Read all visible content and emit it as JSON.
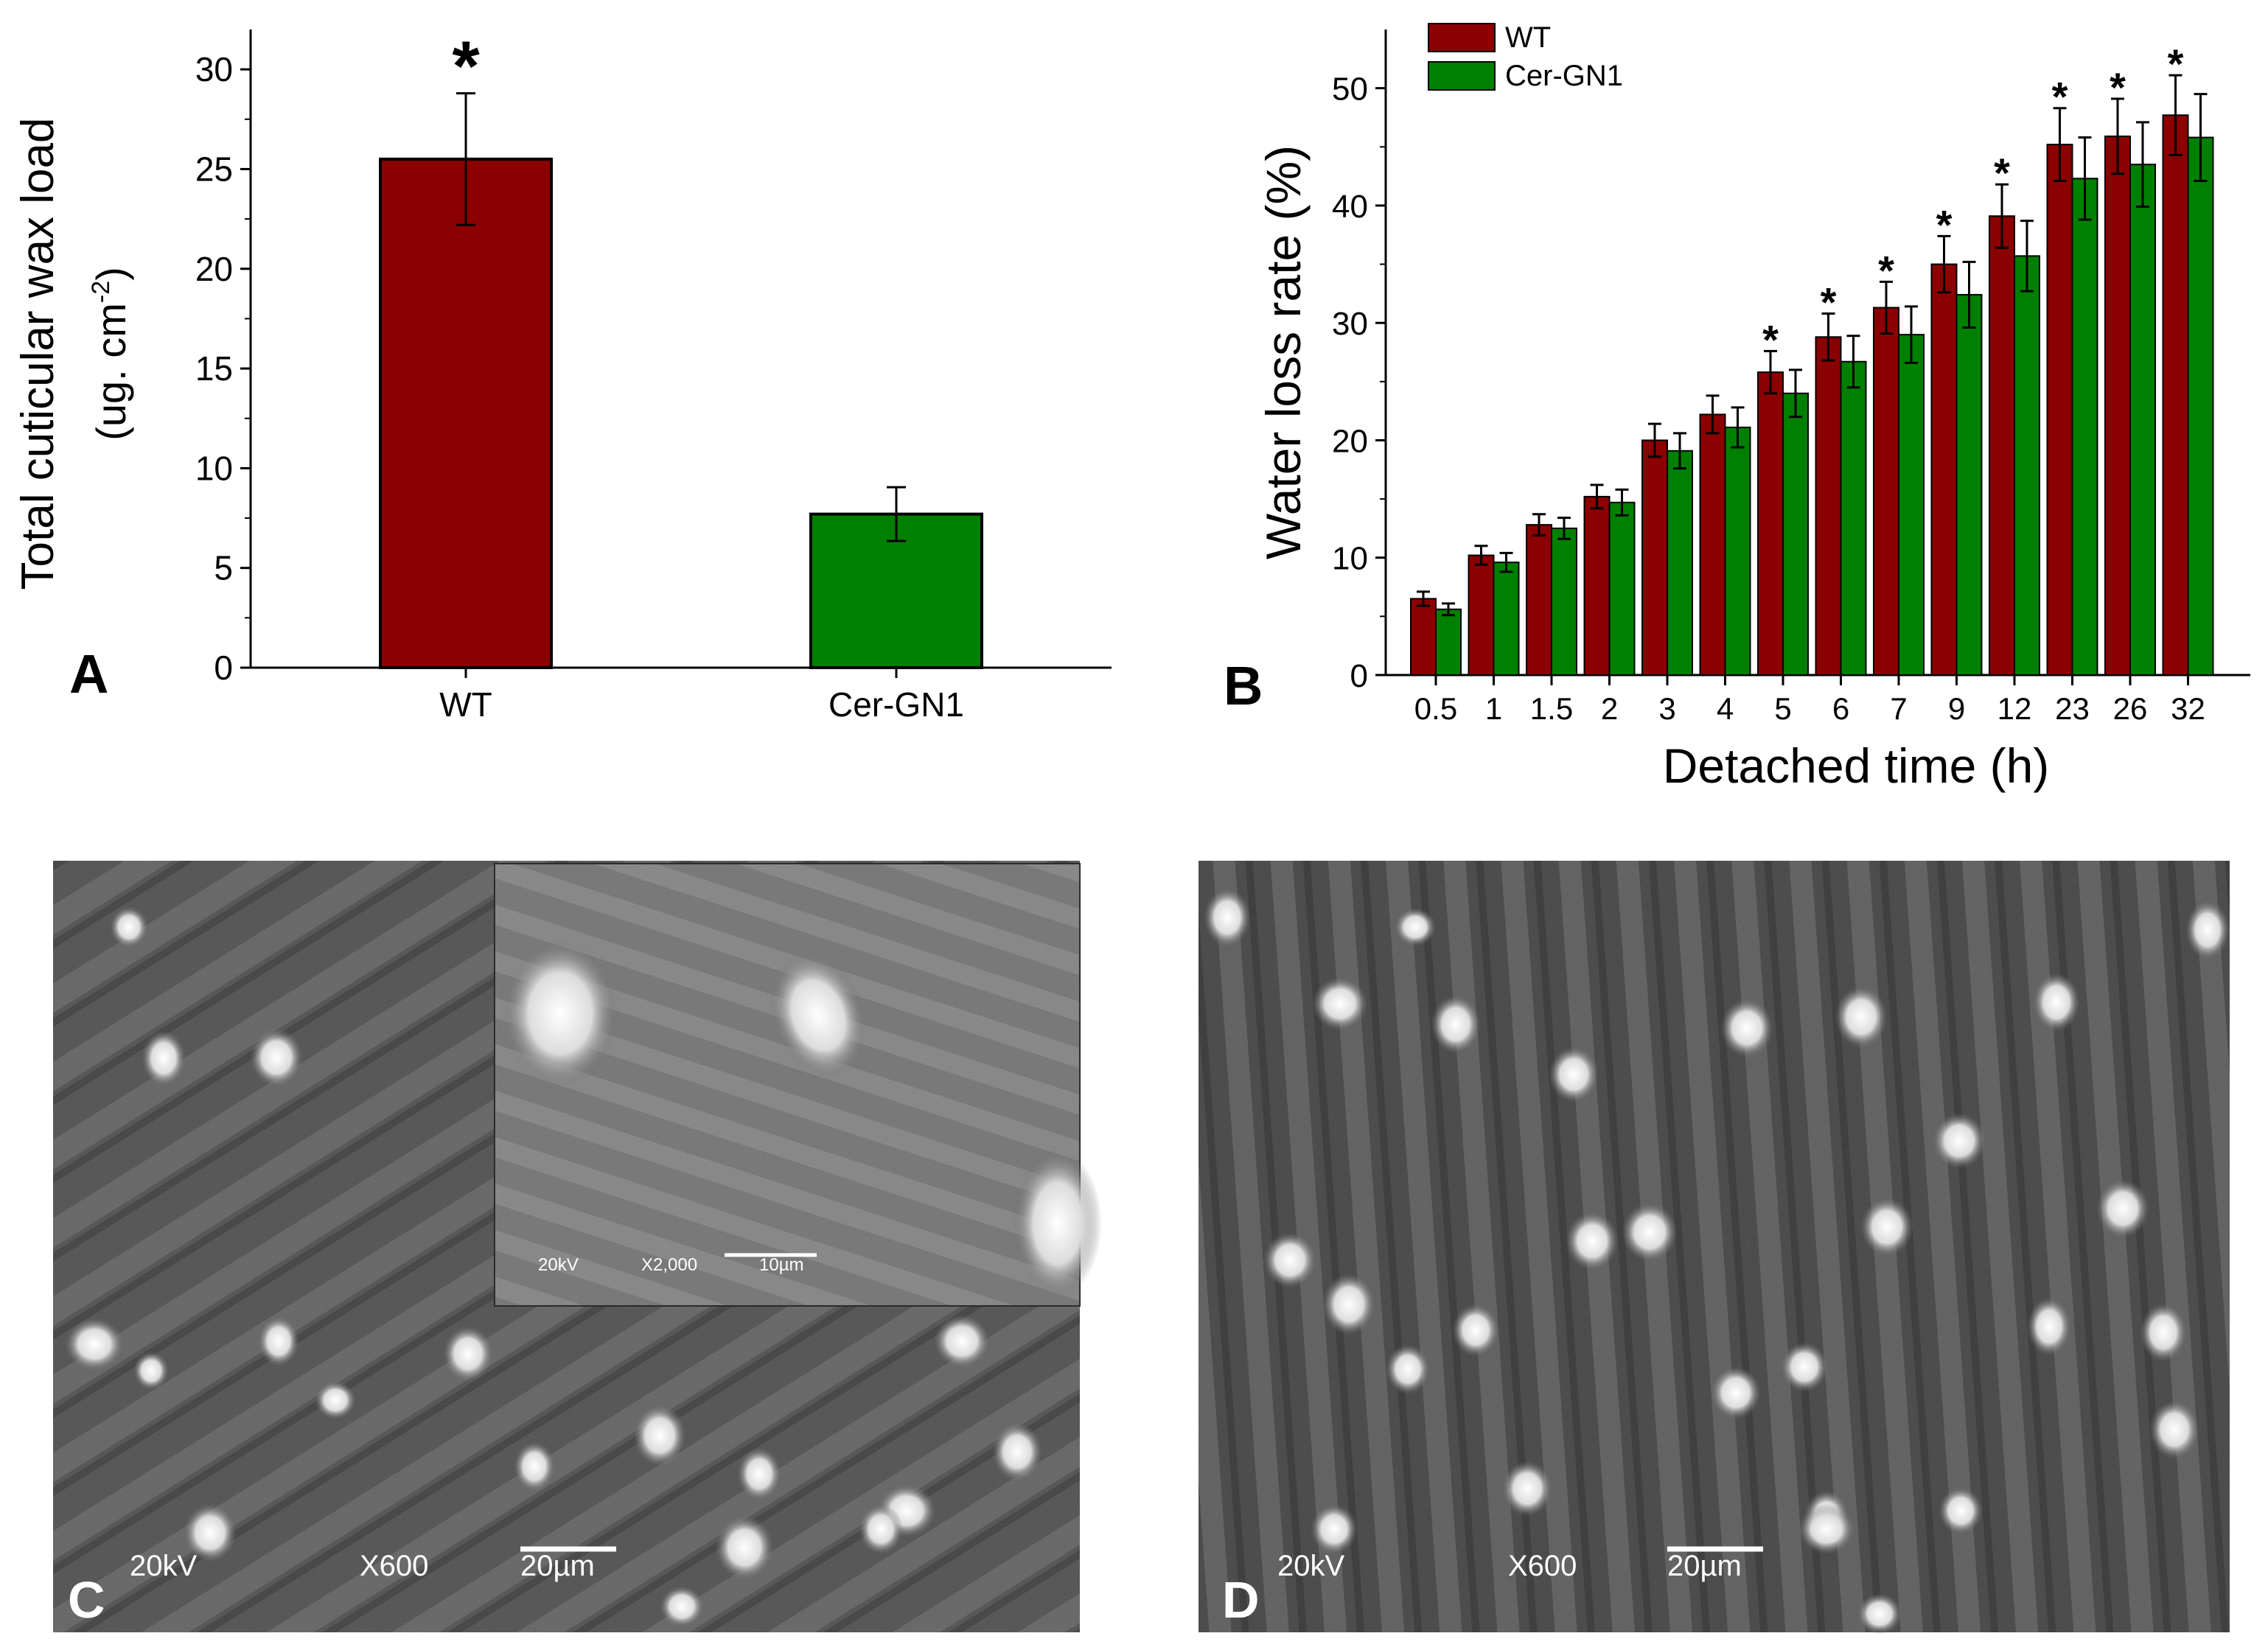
{
  "chart_data": [
    {
      "panel": "A",
      "type": "bar",
      "categories": [
        "WT",
        "Cer-GN1"
      ],
      "series": [
        {
          "values": [
            25.5,
            7.7
          ],
          "errors": [
            3.3,
            1.35
          ],
          "colors": [
            "#8b0000",
            "#008000"
          ]
        }
      ],
      "significance": [
        "*",
        ""
      ],
      "ylabel": "Total cuticular wax load",
      "ylabel_units": "(ug. cm",
      "ylabel_sup": "-2",
      "ylabel_close": ")",
      "xlabel": "",
      "ylim": [
        0,
        32
      ],
      "yticks": [
        0,
        5,
        10,
        15,
        20,
        25,
        30
      ],
      "legend": "none",
      "grid": false
    },
    {
      "panel": "B",
      "type": "bar",
      "categories": [
        "0.5",
        "1",
        "1.5",
        "2",
        "3",
        "4",
        "5",
        "6",
        "7",
        "9",
        "12",
        "23",
        "26",
        "32"
      ],
      "series": [
        {
          "name": "WT",
          "color": "#8b0000",
          "values": [
            6.5,
            10.2,
            12.8,
            15.2,
            20.0,
            22.2,
            25.8,
            28.8,
            31.3,
            35.0,
            39.1,
            45.2,
            45.9,
            47.7
          ],
          "errors": [
            0.6,
            0.8,
            0.9,
            1.0,
            1.4,
            1.6,
            1.8,
            2.0,
            2.2,
            2.4,
            2.7,
            3.1,
            3.2,
            3.4
          ]
        },
        {
          "name": "Cer-GN1",
          "color": "#008000",
          "values": [
            5.6,
            9.6,
            12.5,
            14.7,
            19.1,
            21.1,
            24.0,
            26.7,
            29.0,
            32.4,
            35.7,
            42.3,
            43.5,
            45.8
          ],
          "errors": [
            0.5,
            0.8,
            0.9,
            1.1,
            1.5,
            1.7,
            2.0,
            2.2,
            2.4,
            2.8,
            3.0,
            3.5,
            3.6,
            3.7
          ]
        }
      ],
      "significance": [
        "",
        "",
        "",
        "",
        "",
        "",
        "*",
        "*",
        "*",
        "*",
        "*",
        "*",
        "*",
        "*"
      ],
      "xlabel": "Detached time (h)",
      "ylabel": "Water loss rate (%)",
      "ylim": [
        0,
        55
      ],
      "yticks": [
        0,
        10,
        20,
        30,
        40,
        50
      ],
      "legend": "top-left",
      "grid": false
    }
  ],
  "panel_labels": {
    "a": "A",
    "b": "B",
    "c": "C",
    "d": "D"
  },
  "micrographs": {
    "c": {
      "scale_text": {
        "voltage": "20kV",
        "magnification": "X600",
        "bar": "20µm"
      },
      "inset_text": {
        "voltage": "20kV",
        "magnification": "X2,000",
        "bar": "10µm"
      }
    },
    "d": {
      "scale_text": {
        "voltage": "20kV",
        "magnification": "X600",
        "bar": "20µm"
      }
    }
  }
}
